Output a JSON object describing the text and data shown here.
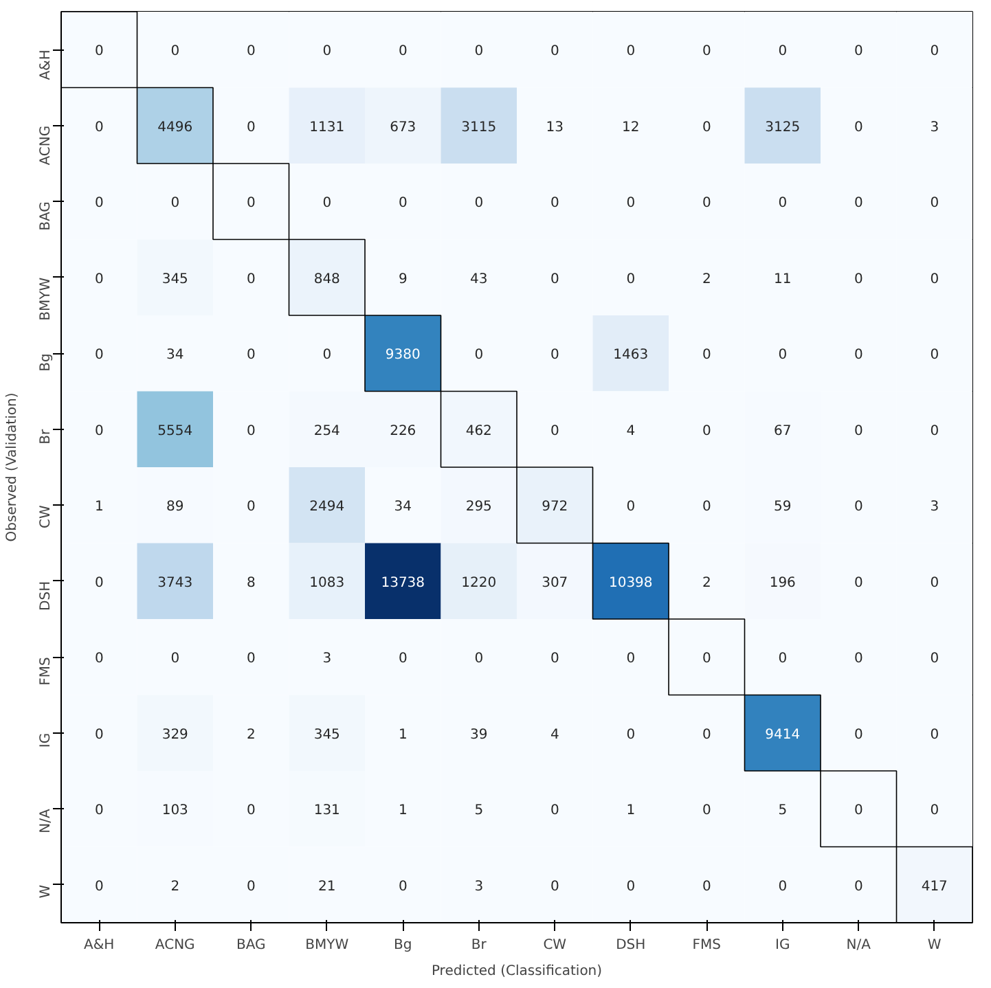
{
  "chart_data": {
    "type": "heatmap",
    "xlabel": "Predicted (Classification)",
    "ylabel": "Observed (Validation)",
    "categories": [
      "A&H",
      "ACNG",
      "BAG",
      "BMYW",
      "Bg",
      "Br",
      "CW",
      "DSH",
      "FMS",
      "IG",
      "N/A",
      "W"
    ],
    "y_categories": [
      "A&H",
      "ACNG",
      "BAG",
      "BMYW",
      "Bg",
      "Br",
      "CW",
      "DSH",
      "FMS",
      "IG",
      "N/A",
      "W"
    ],
    "cells": [
      [
        0,
        0,
        0,
        0,
        0,
        0,
        0,
        0,
        0,
        0,
        0,
        0
      ],
      [
        0,
        4496,
        0,
        1131,
        673,
        3115,
        13,
        12,
        0,
        3125,
        0,
        3
      ],
      [
        0,
        0,
        0,
        0,
        0,
        0,
        0,
        0,
        0,
        0,
        0,
        0
      ],
      [
        0,
        345,
        0,
        848,
        9,
        43,
        0,
        0,
        2,
        11,
        0,
        0
      ],
      [
        0,
        34,
        0,
        0,
        9380,
        0,
        0,
        1463,
        0,
        0,
        0,
        0
      ],
      [
        0,
        5554,
        0,
        254,
        226,
        462,
        0,
        4,
        0,
        67,
        0,
        0
      ],
      [
        1,
        89,
        0,
        2494,
        34,
        295,
        972,
        0,
        0,
        59,
        0,
        3
      ],
      [
        0,
        3743,
        8,
        1083,
        13738,
        1220,
        307,
        10398,
        2,
        196,
        0,
        0
      ],
      [
        0,
        0,
        0,
        3,
        0,
        0,
        0,
        0,
        0,
        0,
        0,
        0
      ],
      [
        0,
        329,
        2,
        345,
        1,
        39,
        4,
        0,
        0,
        9414,
        0,
        0
      ],
      [
        0,
        103,
        0,
        131,
        1,
        5,
        0,
        1,
        0,
        5,
        0,
        0
      ],
      [
        0,
        2,
        0,
        21,
        0,
        3,
        0,
        0,
        0,
        0,
        0,
        417
      ]
    ],
    "data_labels": true,
    "grid": false
  }
}
